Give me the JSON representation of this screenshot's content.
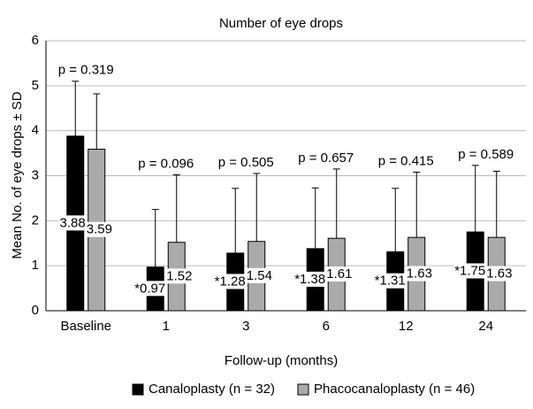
{
  "chart_data": {
    "type": "bar",
    "title": "Number of eye drops",
    "x_label": "Follow-up (months)",
    "y_label": "Mean No. of eye drops ± SD",
    "categories": [
      "Baseline",
      "1",
      "3",
      "6",
      "12",
      "24"
    ],
    "series": [
      {
        "name": "Canaloplasty (n = 32)",
        "color": "#000000",
        "values": [
          3.88,
          0.97,
          1.28,
          1.38,
          1.31,
          1.75
        ],
        "value_labels": [
          "3.88",
          "*0.97",
          "*1.28",
          "*1.38",
          "*1.31",
          "*1.75"
        ],
        "errors": [
          1.22,
          1.28,
          1.44,
          1.35,
          1.41,
          1.48
        ]
      },
      {
        "name": "Phacocanaloplasty (n = 46)",
        "color": "#aaaaaa",
        "values": [
          3.59,
          1.52,
          1.54,
          1.61,
          1.63,
          1.63
        ],
        "errors": [
          1.23,
          1.5,
          1.51,
          1.54,
          1.45,
          1.47
        ]
      }
    ],
    "p_values": [
      "p = 0.319",
      "p = 0.096",
      "p = 0.505",
      "p = 0.657",
      "p = 0.415",
      "p = 0.589"
    ],
    "ylim": [
      0,
      6
    ],
    "yticks": [
      0,
      1,
      2,
      3,
      4,
      5,
      6
    ],
    "grid": true,
    "legend": "bottom"
  }
}
